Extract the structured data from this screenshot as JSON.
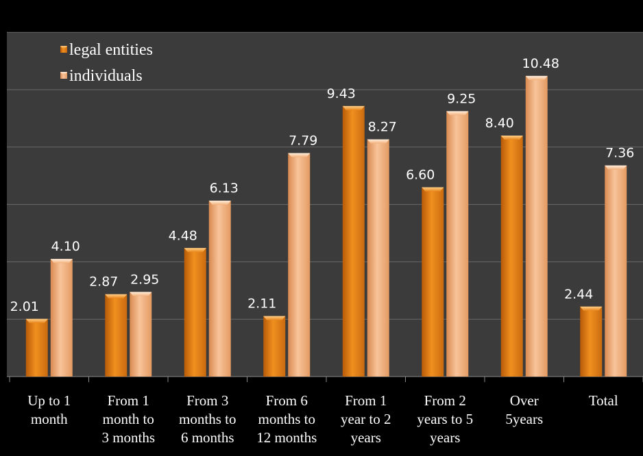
{
  "chart_data": {
    "type": "bar",
    "title": "",
    "xlabel": "",
    "ylabel": "",
    "ylim": [
      0,
      12
    ],
    "grid": true,
    "legend_placement": "top-left",
    "categories": [
      [
        "Up to 1",
        "month"
      ],
      [
        "From 1",
        "month to",
        "3 months"
      ],
      [
        "From 3",
        "months to",
        "6 months"
      ],
      [
        "From 6",
        "months to",
        "12 months"
      ],
      [
        "From 1",
        "year to 2",
        "years"
      ],
      [
        "From 2",
        "years to 5",
        "years"
      ],
      [
        "Over",
        "5years"
      ],
      [
        "Total"
      ]
    ],
    "series": [
      {
        "name": "legal entities",
        "values": [
          2.01,
          2.87,
          4.48,
          2.11,
          9.43,
          6.6,
          8.4,
          2.44
        ],
        "labels": [
          "2.01",
          "2.87",
          "4.48",
          "2.11",
          "9.43",
          "6.60",
          "8.40",
          "2.44"
        ],
        "color": "#e8851a"
      },
      {
        "name": "individuals",
        "values": [
          4.1,
          2.95,
          6.13,
          7.79,
          8.27,
          9.25,
          10.48,
          7.36
        ],
        "labels": [
          "4.10",
          "2.95",
          "6.13",
          "7.79",
          "8.27",
          "9.25",
          "10.48",
          "7.36"
        ],
        "color": "#f2b07a"
      }
    ]
  },
  "colors": {
    "plot_background": "#3b3b3b",
    "frame_background": "#000000",
    "gridline": "#6a6a6a",
    "text": "#ffffff"
  }
}
